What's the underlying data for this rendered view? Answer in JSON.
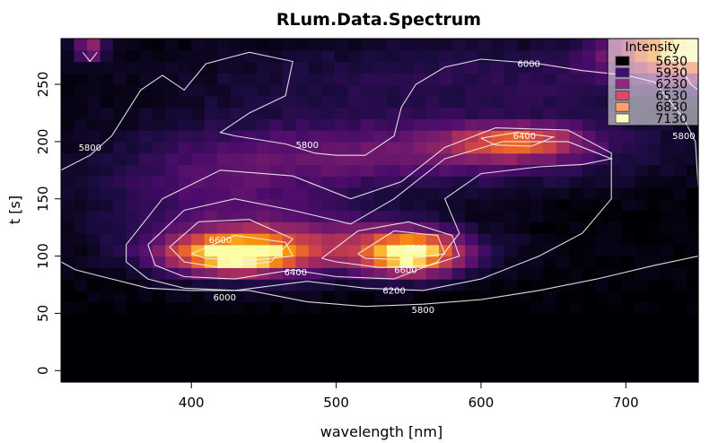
{
  "chart_data": {
    "type": "heatmap",
    "title": "RLum.Data.Spectrum",
    "xlabel": "wavelength [nm]",
    "ylabel": "t [s]",
    "xlim": [
      310,
      750
    ],
    "ylim": [
      -10,
      290
    ],
    "x_ticks": [
      400,
      500,
      600,
      700
    ],
    "y_ticks": [
      0,
      50,
      100,
      150,
      200,
      250
    ],
    "x_tick_labels": [
      "400",
      "500",
      "600",
      "700"
    ],
    "y_tick_labels": [
      "0",
      "50",
      "100",
      "150",
      "200",
      "250"
    ],
    "grid": false,
    "colormap": "inferno",
    "legend": {
      "title": "Intensity",
      "position": "top-right",
      "entries": [
        {
          "label": "5630",
          "color": "#000004"
        },
        {
          "label": "5930",
          "color": "#3b0f70"
        },
        {
          "label": "6230",
          "color": "#8c2981"
        },
        {
          "label": "6530",
          "color": "#de4968"
        },
        {
          "label": "6830",
          "color": "#fe9f6d"
        },
        {
          "label": "7130",
          "color": "#fcfdbf"
        }
      ]
    },
    "contours": [
      {
        "level": "5800",
        "label_points": [
          [
            330,
            195
          ],
          [
            480,
            197
          ],
          [
            560,
            53
          ],
          [
            740,
            205
          ]
        ]
      },
      {
        "level": "6000",
        "label_points": [
          [
            633,
            268
          ],
          [
            423,
            64
          ]
        ]
      },
      {
        "level": "6200",
        "label_points": [
          [
            540,
            70
          ]
        ]
      },
      {
        "level": "6400",
        "label_points": [
          [
            472,
            86
          ],
          [
            630,
            205
          ]
        ]
      },
      {
        "level": "6600",
        "label_points": [
          [
            420,
            114
          ],
          [
            548,
            88
          ]
        ]
      },
      {
        "level": "6800",
        "label_points": [
          [
            555,
            107
          ]
        ]
      }
    ]
  }
}
